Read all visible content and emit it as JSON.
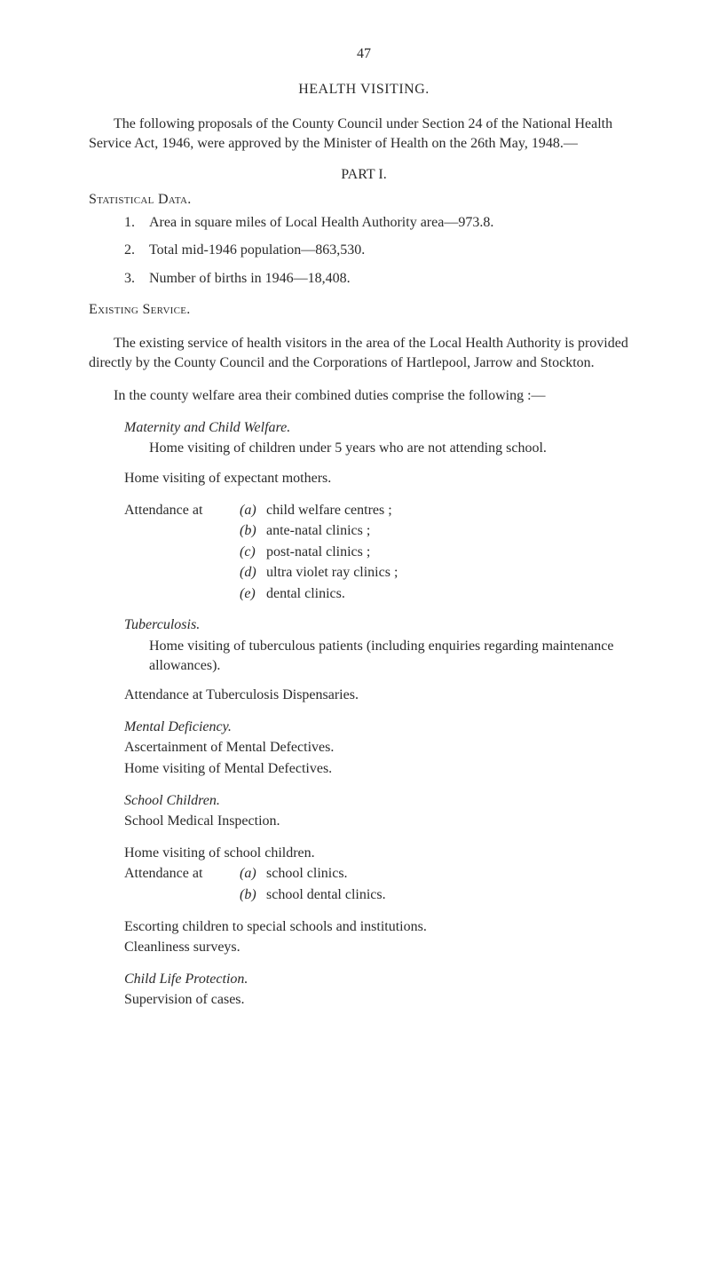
{
  "page_number": "47",
  "title": "HEALTH VISITING.",
  "intro": "The following proposals of the County Council under Section 24 of the National Health Service Act, 1946, were approved by the Minister of Health on the 26th May, 1948.—",
  "part_heading": "PART I.",
  "statistical_heading": "Statistical Data.",
  "stat_items": [
    {
      "num": "1.",
      "text": "Area in square miles of Local Health Authority area—973.8."
    },
    {
      "num": "2.",
      "text": "Total mid-1946 population—863,530."
    },
    {
      "num": "3.",
      "text": "Number of births in 1946—18,408."
    }
  ],
  "existing_heading": "Existing Service.",
  "existing_para": "The existing service of health visitors in the area of the Local Health Authority is provided directly by the County Council and the Corporations of Hartlepool, Jarrow and Stockton.",
  "county_para": "In the county welfare area their combined duties comprise the following :—",
  "maternity_heading": "Maternity and Child Welfare.",
  "maternity_l1": "Home visiting of children under 5 years who are not attending school.",
  "maternity_l2": "Home visiting of expectant mothers.",
  "attendance_label": "Attendance at",
  "attendance_items": [
    {
      "letter": "(a)",
      "text": "child welfare centres ;"
    },
    {
      "letter": "(b)",
      "text": "ante-natal clinics ;"
    },
    {
      "letter": "(c)",
      "text": "post-natal clinics ;"
    },
    {
      "letter": "(d)",
      "text": "ultra violet ray clinics ;"
    },
    {
      "letter": "(e)",
      "text": "dental clinics."
    }
  ],
  "tb_heading": "Tuberculosis.",
  "tb_l1": "Home visiting of tuberculous patients (including enquiries regarding maintenance allowances).",
  "tb_l2": "Attendance at Tuberculosis Dispensaries.",
  "mental_heading": "Mental Deficiency.",
  "mental_l1": "Ascertainment of Mental Defectives.",
  "mental_l2": "Home visiting of Mental Defectives.",
  "school_heading": "School Children.",
  "school_l1": "School Medical Inspection.",
  "school_l2": "Home visiting of school children.",
  "school_att_label": "Attendance at",
  "school_att_items": [
    {
      "letter": "(a)",
      "text": "school clinics."
    },
    {
      "letter": "(b)",
      "text": "school dental clinics."
    }
  ],
  "school_l3": "Escorting children to special schools and institutions.",
  "school_l4": "Cleanliness surveys.",
  "child_heading": "Child Life Protection.",
  "child_l1": "Supervision of cases.",
  "colors": {
    "text": "#2a2a2a",
    "background": "#ffffff"
  },
  "typography": {
    "body_fontsize_pt": 12,
    "font_family": "Times New Roman"
  }
}
